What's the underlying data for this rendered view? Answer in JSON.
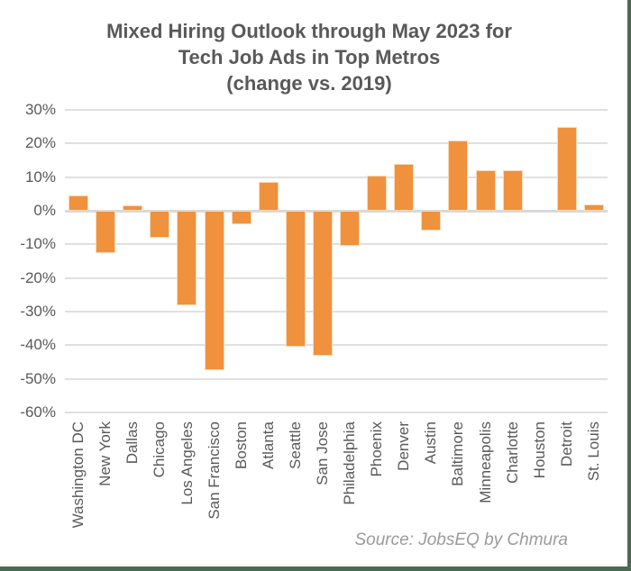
{
  "title": {
    "lines": [
      "Mixed Hiring Outlook through May 2023 for",
      "Tech Job Ads in Top Metros",
      "(change vs. 2019)"
    ]
  },
  "source": "Source: JobsEQ by Chmura",
  "colors": {
    "bar": "#F0913D",
    "bar_edge": "#F8D9B6",
    "grid": "#E0E0E0",
    "text": "#595959",
    "source_text": "#9B9B9B",
    "frame_green": "#4A6B4F",
    "background": "#FFFFFF"
  },
  "chart_data": {
    "type": "bar",
    "title": "Mixed Hiring Outlook through May 2023 for Tech Job Ads in Top Metros (change vs. 2019)",
    "categories": [
      "Washington DC",
      "New York",
      "Dallas",
      "Chicago",
      "Los Angeles",
      "San Francisco",
      "Boston",
      "Atlanta",
      "Seattle",
      "San Jose",
      "Philadelphia",
      "Phoenix",
      "Denver",
      "Austin",
      "Baltimore",
      "Minneapolis",
      "Charlotte",
      "Houston",
      "Detroit",
      "St. Louis"
    ],
    "values": [
      4.5,
      -12.5,
      1.5,
      -8,
      -28,
      -47.5,
      -4,
      8.5,
      -40.5,
      -43,
      -10.5,
      10.5,
      14,
      -6,
      21,
      12,
      12,
      0,
      25,
      2
    ],
    "unit": "%",
    "xlabel": "",
    "ylabel": "",
    "ylim": [
      -60,
      30
    ],
    "ytick_step": 10,
    "ytick_labels": [
      "30%",
      "20%",
      "10%",
      "0%",
      "-10%",
      "-20%",
      "-30%",
      "-40%",
      "-50%",
      "-60%"
    ],
    "grid": true,
    "legend": false,
    "bar_orientation": "vertical"
  }
}
